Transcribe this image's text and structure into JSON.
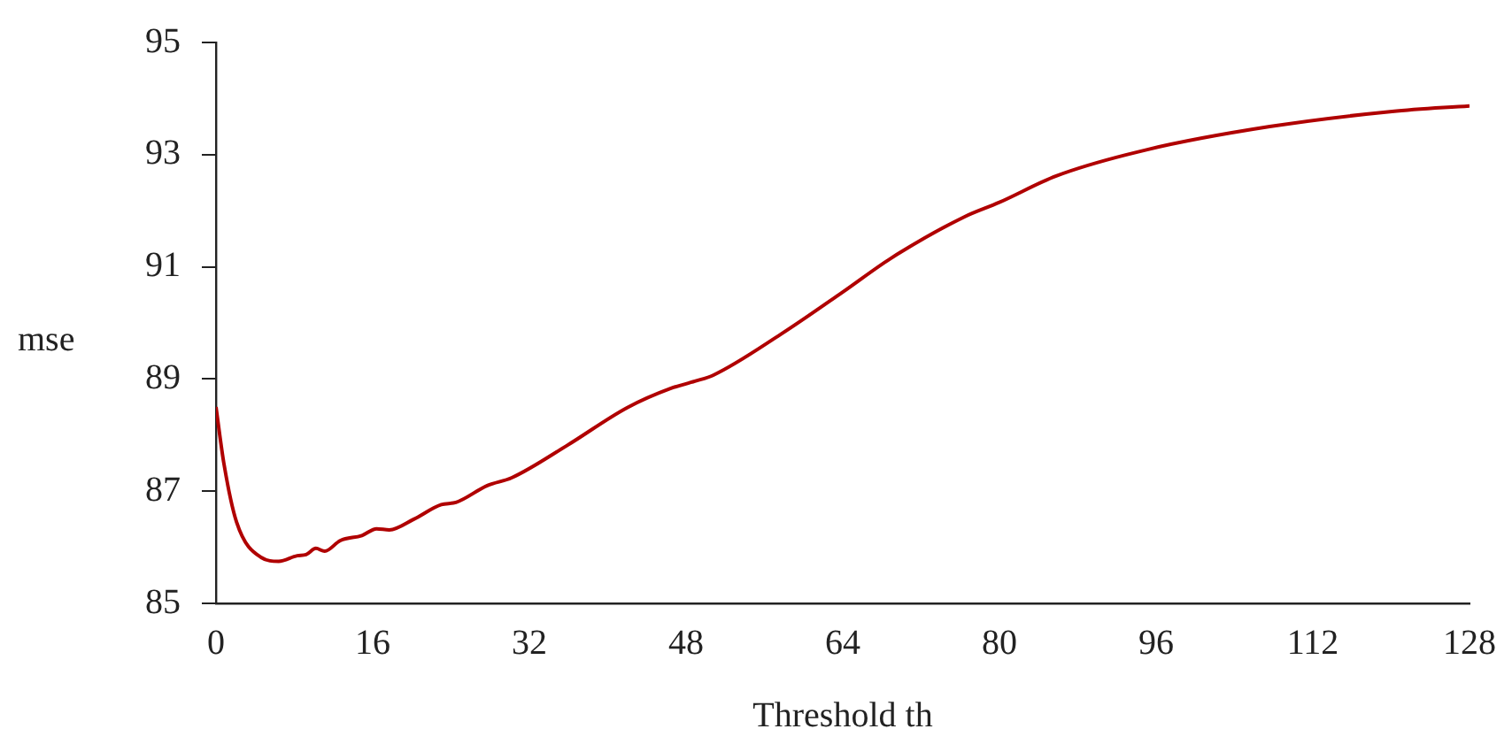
{
  "chart_data": {
    "type": "line",
    "xlabel": "Threshold th",
    "ylabel": "mse",
    "x": [
      0,
      0.8,
      2.1,
      4.6,
      6.4,
      8.3,
      9.2,
      10.2,
      11.1,
      12.7,
      14.9,
      16.4,
      17.7,
      20.2,
      23.0,
      24.5,
      27.7,
      30.2,
      35.8,
      42.0,
      46.4,
      48.9,
      50.8,
      57.7,
      64,
      68.9,
      76.4,
      80,
      85.8,
      95.1,
      107.6,
      120.1,
      128
    ],
    "series": [
      {
        "color": "#b00000",
        "values": [
          88.5,
          87.5,
          86.45,
          85.82,
          85.75,
          85.85,
          85.87,
          85.98,
          85.93,
          86.12,
          86.21,
          86.33,
          86.31,
          86.5,
          86.76,
          86.8,
          87.1,
          87.24,
          87.81,
          88.49,
          88.83,
          88.96,
          89.07,
          89.8,
          90.55,
          91.15,
          91.89,
          92.15,
          92.62,
          93.09,
          93.5,
          93.77,
          93.87
        ]
      }
    ],
    "xlim": [
      0,
      128
    ],
    "xticks": [
      0,
      16,
      32,
      48,
      64,
      80,
      96,
      112,
      128
    ],
    "ylim": [
      85,
      95
    ],
    "yticks": [
      85,
      87,
      89,
      91,
      93,
      95
    ],
    "grid": false,
    "legend": false,
    "marker": "none",
    "line_style": "solid"
  }
}
